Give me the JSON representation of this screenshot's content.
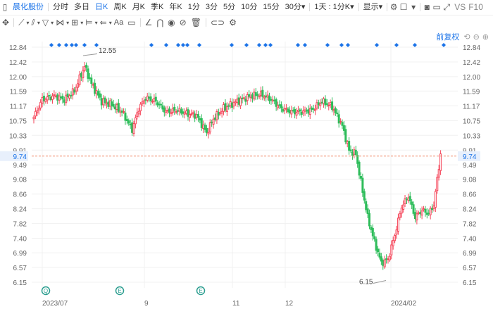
{
  "toolbar": {
    "stock_name": "晨化股份",
    "timeframes": [
      {
        "label": "分时"
      },
      {
        "label": "多日"
      },
      {
        "label": "日K",
        "active": true
      },
      {
        "label": "周K"
      },
      {
        "label": "月K"
      },
      {
        "label": "季K"
      },
      {
        "label": "年K"
      },
      {
        "label": "1分"
      },
      {
        "label": "3分"
      },
      {
        "label": "5分"
      },
      {
        "label": "10分"
      },
      {
        "label": "15分"
      }
    ],
    "dropdown_30": "30分",
    "dropdown_1day": "1天 : 1分K",
    "display_label": "显示",
    "vs_label": "VS",
    "f10_label": "F10"
  },
  "fq_label": "前复权",
  "chart_data": {
    "type": "candlestick",
    "y_ticks": [
      "12.84",
      "12.42",
      "12.00",
      "11.59",
      "11.17",
      "10.75",
      "10.33",
      "9.91",
      "9.49",
      "9.08",
      "8.66",
      "8.24",
      "7.82",
      "7.40",
      "6.99",
      "6.57",
      "6.15"
    ],
    "x_labels": [
      "2023/07",
      "9",
      "11",
      "12",
      "2024/02"
    ],
    "current_price": "9.74",
    "annotations": {
      "high": "12.55",
      "low": "6.15"
    },
    "ylim": [
      6.15,
      12.84
    ],
    "up_color": "#f5475b",
    "down_color": "#2ebd5b",
    "event_markers": [
      "Q",
      "E",
      "E"
    ]
  }
}
